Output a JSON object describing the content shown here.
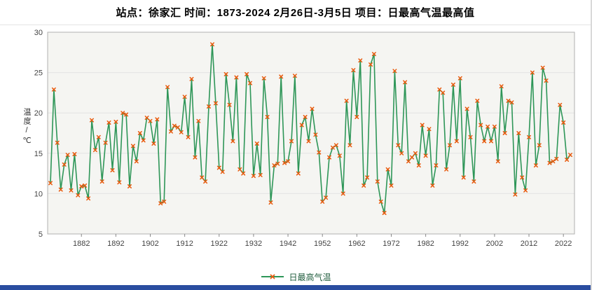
{
  "header": {
    "title": "站点：徐家汇 时间：1873-2024  2月26日-3月5日 项目：日最高气温最高值"
  },
  "chart": {
    "y_axis_label": "温度/℃",
    "colors": {
      "line": "#2e9658",
      "marker": "#e8590c",
      "plot_bg": "#f5f5f2",
      "grid": "#e3e3e3",
      "axis": "#b0b0b0",
      "tick_text": "#444444",
      "legend_text": "#1f5c3d",
      "bottom_bar": "#2a4da0"
    }
  },
  "legend": {
    "label": "日最高气温"
  },
  "chart_data": {
    "type": "line",
    "title": "站点：徐家汇 时间：1873-2024  2月26日-3月5日 项目：日最高气温最高值",
    "xlabel": "",
    "ylabel": "温度/℃",
    "x_start": 1873,
    "x_end": 2024,
    "ylim": [
      5,
      30
    ],
    "y_ticks": [
      5,
      10,
      15,
      20,
      25,
      30
    ],
    "x_ticks": [
      1882,
      1892,
      1902,
      1912,
      1922,
      1932,
      1942,
      1952,
      1962,
      1972,
      1982,
      1992,
      2002,
      2012,
      2022
    ],
    "grid": "horizontal",
    "legend_position": "bottom",
    "series": [
      {
        "name": "日最高气温",
        "values": [
          11.3,
          22.9,
          16.3,
          10.5,
          13.6,
          14.8,
          10.4,
          14.9,
          9.8,
          10.9,
          11.0,
          9.4,
          19.1,
          15.4,
          17.0,
          11.5,
          16.3,
          18.8,
          12.9,
          18.9,
          11.4,
          20.0,
          19.8,
          10.9,
          15.9,
          14.0,
          17.5,
          16.6,
          19.4,
          19.0,
          16.2,
          19.2,
          8.8,
          9.0,
          23.2,
          17.7,
          18.4,
          18.2,
          17.6,
          22.0,
          17.0,
          24.2,
          14.5,
          19.0,
          12.0,
          11.5,
          20.8,
          28.5,
          21.2,
          13.2,
          12.7,
          24.8,
          21.0,
          16.5,
          24.4,
          13.0,
          12.5,
          24.8,
          23.7,
          12.2,
          16.2,
          12.3,
          24.3,
          19.5,
          8.9,
          13.5,
          13.7,
          24.5,
          13.8,
          14.0,
          16.5,
          24.6,
          12.5,
          18.5,
          19.5,
          16.5,
          20.5,
          17.3,
          15.1,
          9.0,
          9.5,
          14.5,
          15.7,
          16.0,
          14.7,
          10.0,
          21.5,
          16.0,
          25.3,
          19.5,
          26.5,
          11.0,
          12.0,
          26.0,
          27.3,
          11.5,
          9.0,
          7.6,
          13.0,
          11.0,
          25.2,
          16.0,
          15.0,
          23.8,
          14.0,
          14.5,
          15.0,
          13.5,
          18.5,
          14.7,
          18.0,
          11.0,
          13.5,
          22.9,
          22.5,
          13.0,
          16.0,
          23.5,
          16.5,
          24.3,
          12.0,
          20.5,
          17.0,
          11.5,
          21.5,
          18.5,
          16.5,
          18.3,
          16.5,
          18.3,
          14.0,
          23.3,
          17.5,
          21.5,
          21.3,
          9.9,
          17.5,
          12.0,
          10.4,
          17.0,
          25.0,
          13.5,
          16.0,
          25.6,
          24.0,
          13.8,
          14.0,
          14.3,
          21.0,
          18.8,
          14.2,
          14.8
        ]
      }
    ]
  }
}
